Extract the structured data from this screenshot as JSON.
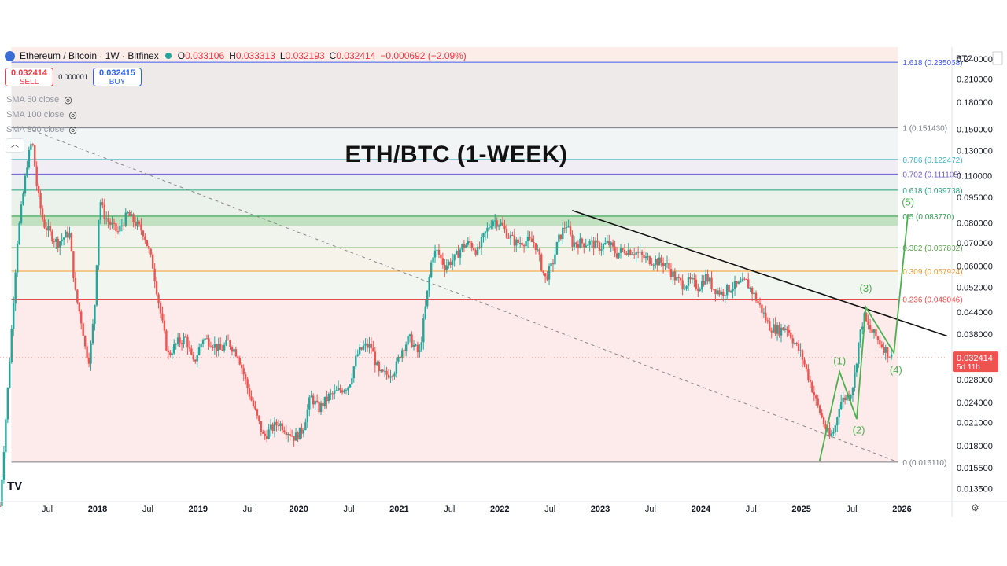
{
  "header": {
    "symbol": "Ethereum / Bitcoin · 1W · Bitfinex",
    "ohlc": {
      "o_label": "O",
      "o": "0.033106",
      "h_label": "H",
      "h": "0.033313",
      "l_label": "L",
      "l": "0.032193",
      "c_label": "C",
      "c": "0.032414",
      "change": "−0.000692 (−2.09%)"
    }
  },
  "trade": {
    "sell_price": "0.032414",
    "sell_label": "SELL",
    "spread": "0.000001",
    "buy_price": "0.032415",
    "buy_label": "BUY"
  },
  "indicators": [
    "SMA 50 close",
    "SMA 100 close",
    "SMA 200 close"
  ],
  "annotation_title": "ETH/BTC (1-WEEK)",
  "price_axis": {
    "currency": "BTC",
    "ticks": [
      "0.240000",
      "0.210000",
      "0.180000",
      "0.150000",
      "0.130000",
      "0.110000",
      "0.095000",
      "0.080000",
      "0.070000",
      "0.060000",
      "0.052000",
      "0.044000",
      "0.038000",
      "0.032414",
      "0.028000",
      "0.024000",
      "0.021000",
      "0.018000",
      "0.015500",
      "0.013500"
    ],
    "tick_values": [
      0.24,
      0.21,
      0.18,
      0.15,
      0.13,
      0.11,
      0.095,
      0.08,
      0.07,
      0.06,
      0.052,
      0.044,
      0.038,
      0.028,
      0.024,
      0.021,
      0.018,
      0.0155,
      0.0135
    ],
    "current_price": "0.032414",
    "current_value": 0.032414,
    "countdown": "5d 11h",
    "up_color": "#26a69a",
    "down_color": "#ef5350"
  },
  "time_axis": {
    "labels": [
      "Jul",
      "2018",
      "Jul",
      "2019",
      "Jul",
      "2020",
      "Jul",
      "2021",
      "Jul",
      "2022",
      "Jul",
      "2023",
      "Jul",
      "2024",
      "Jul",
      "2025",
      "Jul",
      "2026"
    ],
    "label_times": [
      2017.5,
      2018,
      2018.5,
      2019,
      2019.5,
      2020,
      2020.5,
      2021,
      2021.5,
      2022,
      2022.5,
      2023,
      2023.5,
      2024,
      2024.5,
      2025,
      2025.5,
      2026
    ]
  },
  "chart_data": {
    "type": "candlestick",
    "symbol": "Ethereum / Bitcoin",
    "timeframe": "1W",
    "exchange": "Bitfinex",
    "yscale": "log",
    "ylim": [
      0.0125,
      0.26
    ],
    "xlim": [
      2017.03,
      2026.45
    ],
    "grid": false,
    "price_path": [
      [
        2017.03,
        0.012
      ],
      [
        2017.12,
        0.03
      ],
      [
        2017.2,
        0.07
      ],
      [
        2017.3,
        0.12
      ],
      [
        2017.35,
        0.14
      ],
      [
        2017.4,
        0.1
      ],
      [
        2017.46,
        0.08
      ],
      [
        2017.52,
        0.075
      ],
      [
        2017.6,
        0.07
      ],
      [
        2017.72,
        0.075
      ],
      [
        2017.78,
        0.05
      ],
      [
        2017.85,
        0.04
      ],
      [
        2017.88,
        0.034
      ],
      [
        2017.92,
        0.032
      ],
      [
        2017.97,
        0.045
      ],
      [
        2018.02,
        0.095
      ],
      [
        2018.06,
        0.085
      ],
      [
        2018.12,
        0.08
      ],
      [
        2018.2,
        0.075
      ],
      [
        2018.3,
        0.085
      ],
      [
        2018.37,
        0.08
      ],
      [
        2018.46,
        0.075
      ],
      [
        2018.55,
        0.06
      ],
      [
        2018.63,
        0.043
      ],
      [
        2018.7,
        0.033
      ],
      [
        2018.8,
        0.036
      ],
      [
        2018.88,
        0.037
      ],
      [
        2018.95,
        0.031
      ],
      [
        2019.05,
        0.037
      ],
      [
        2019.13,
        0.036
      ],
      [
        2019.22,
        0.034
      ],
      [
        2019.3,
        0.036
      ],
      [
        2019.4,
        0.033
      ],
      [
        2019.5,
        0.026
      ],
      [
        2019.58,
        0.022
      ],
      [
        2019.65,
        0.019
      ],
      [
        2019.72,
        0.02
      ],
      [
        2019.8,
        0.021
      ],
      [
        2019.88,
        0.02
      ],
      [
        2019.96,
        0.019
      ],
      [
        2020.04,
        0.02
      ],
      [
        2020.12,
        0.025
      ],
      [
        2020.2,
        0.023
      ],
      [
        2020.3,
        0.025
      ],
      [
        2020.4,
        0.026
      ],
      [
        2020.5,
        0.027
      ],
      [
        2020.58,
        0.033
      ],
      [
        2020.65,
        0.035
      ],
      [
        2020.72,
        0.035
      ],
      [
        2020.8,
        0.029
      ],
      [
        2020.88,
        0.029
      ],
      [
        2020.96,
        0.03
      ],
      [
        2021.02,
        0.034
      ],
      [
        2021.1,
        0.037
      ],
      [
        2021.2,
        0.033
      ],
      [
        2021.28,
        0.05
      ],
      [
        2021.33,
        0.065
      ],
      [
        2021.38,
        0.066
      ],
      [
        2021.45,
        0.06
      ],
      [
        2021.55,
        0.063
      ],
      [
        2021.62,
        0.068
      ],
      [
        2021.7,
        0.07
      ],
      [
        2021.78,
        0.066
      ],
      [
        2021.85,
        0.074
      ],
      [
        2021.93,
        0.082
      ],
      [
        2022.0,
        0.08
      ],
      [
        2022.08,
        0.074
      ],
      [
        2022.16,
        0.07
      ],
      [
        2022.26,
        0.071
      ],
      [
        2022.35,
        0.07
      ],
      [
        2022.45,
        0.055
      ],
      [
        2022.52,
        0.06
      ],
      [
        2022.58,
        0.071
      ],
      [
        2022.66,
        0.08
      ],
      [
        2022.72,
        0.07
      ],
      [
        2022.8,
        0.07
      ],
      [
        2022.9,
        0.07
      ],
      [
        2023.0,
        0.068
      ],
      [
        2023.08,
        0.07
      ],
      [
        2023.16,
        0.065
      ],
      [
        2023.25,
        0.067
      ],
      [
        2023.35,
        0.066
      ],
      [
        2023.45,
        0.063
      ],
      [
        2023.55,
        0.062
      ],
      [
        2023.65,
        0.061
      ],
      [
        2023.75,
        0.055
      ],
      [
        2023.82,
        0.053
      ],
      [
        2023.9,
        0.054
      ],
      [
        2023.98,
        0.052
      ],
      [
        2024.05,
        0.056
      ],
      [
        2024.12,
        0.052
      ],
      [
        2024.2,
        0.05
      ],
      [
        2024.3,
        0.052
      ],
      [
        2024.4,
        0.053
      ],
      [
        2024.45,
        0.054
      ],
      [
        2024.52,
        0.05
      ],
      [
        2024.6,
        0.045
      ],
      [
        2024.68,
        0.04
      ],
      [
        2024.78,
        0.039
      ],
      [
        2024.85,
        0.04
      ],
      [
        2024.93,
        0.036
      ],
      [
        2025.0,
        0.033
      ],
      [
        2025.08,
        0.028
      ],
      [
        2025.15,
        0.024
      ],
      [
        2025.22,
        0.021
      ],
      [
        2025.28,
        0.019
      ],
      [
        2025.33,
        0.02
      ],
      [
        2025.38,
        0.024
      ],
      [
        2025.45,
        0.025
      ],
      [
        2025.5,
        0.026
      ],
      [
        2025.53,
        0.029
      ],
      [
        2025.57,
        0.036
      ],
      [
        2025.62,
        0.043
      ],
      [
        2025.66,
        0.04
      ],
      [
        2025.72,
        0.038
      ],
      [
        2025.78,
        0.036
      ],
      [
        2025.84,
        0.034
      ],
      [
        2025.88,
        0.033
      ],
      [
        2025.9,
        0.032414
      ]
    ],
    "fib_levels": [
      {
        "label": "1.618 (0.235058)",
        "value": 0.235058,
        "color": "#3d5af1"
      },
      {
        "label": "1 (0.151430)",
        "value": 0.15143,
        "color": "#787b86"
      },
      {
        "label": "0.786 (0.122472)",
        "value": 0.122472,
        "color": "#3cb5c2"
      },
      {
        "label": "0.702 (0.111105)",
        "value": 0.111105,
        "color": "#6d5bd0"
      },
      {
        "label": "0.618 (0.099738)",
        "value": 0.099738,
        "color": "#22a07a"
      },
      {
        "label": "0.5 (0.083770)",
        "value": 0.08377,
        "color": "#2e9e4f"
      },
      {
        "label": "0.382 (0.067802)",
        "value": 0.067802,
        "color": "#5aa04a"
      },
      {
        "label": "0.309 (0.057924)",
        "value": 0.057924,
        "color": "#f59b2f"
      },
      {
        "label": "0.236 (0.048046)",
        "value": 0.048046,
        "color": "#e84a4a"
      },
      {
        "label": "0 (0.016110)",
        "value": 0.01611,
        "color": "#787b86"
      }
    ],
    "fib_x_range": [
      2017.3,
      2025.96
    ],
    "highlight_band": {
      "low": 0.0785,
      "high": 0.0845,
      "color": "#4caf50"
    },
    "resistance_line": {
      "points": [
        [
          2022.72,
          0.087
        ],
        [
          2026.45,
          0.0375
        ]
      ],
      "color": "#111111"
    },
    "dashed_trendline": {
      "points": [
        [
          2017.3,
          0.151
        ],
        [
          2025.96,
          0.01611
        ]
      ],
      "color": "#888888"
    },
    "elliott_waves": {
      "color": "#4caf50",
      "path": [
        [
          2025.18,
          0.0162
        ],
        [
          2025.38,
          0.0295
        ],
        [
          2025.55,
          0.0215
        ],
        [
          2025.64,
          0.0455
        ],
        [
          2025.92,
          0.0335
        ],
        [
          2026.06,
          0.085
        ]
      ],
      "labels": [
        {
          "text": "(1)",
          "x": 2025.38,
          "y": 0.031
        },
        {
          "text": "(2)",
          "x": 2025.57,
          "y": 0.0195
        },
        {
          "text": "(3)",
          "x": 2025.64,
          "y": 0.0505
        },
        {
          "text": "(4)",
          "x": 2025.94,
          "y": 0.0292
        },
        {
          "text": "(5)",
          "x": 2026.06,
          "y": 0.09
        }
      ]
    }
  }
}
